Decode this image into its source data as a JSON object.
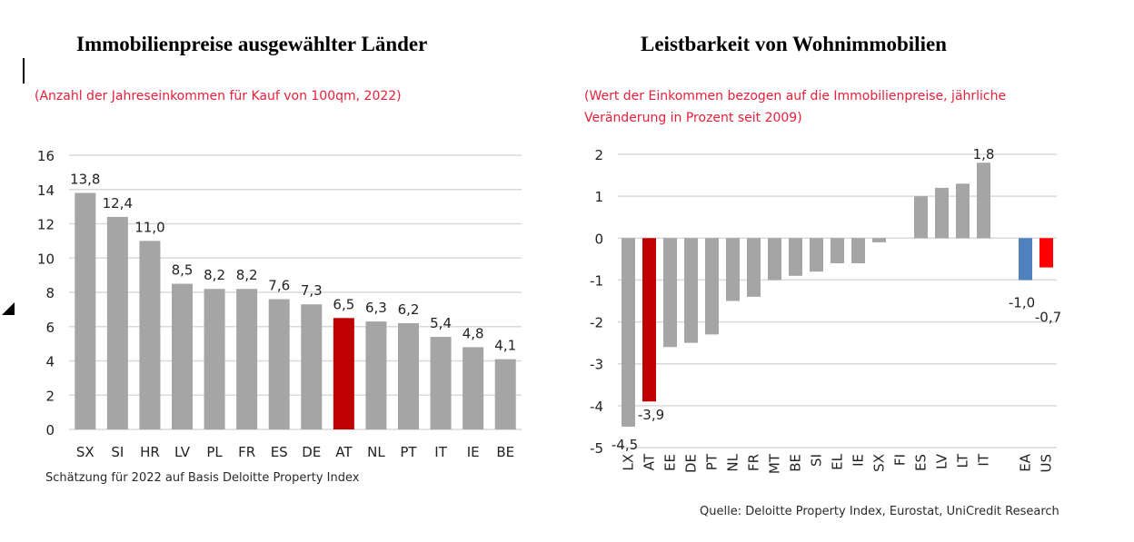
{
  "left": {
    "title": "Immobilienpreise ausgewählter Länder",
    "subtitle": "(Anzahl der Jahreseinkommen für Kauf von 100qm, 2022)",
    "footnote": "Schätzung für 2022 auf Basis Deloitte Property Index"
  },
  "right": {
    "title": "Leistbarkeit von Wohnimmobilien",
    "subtitle_line1": "(Wert der Einkommen bezogen auf die Immobilienpreise, jährliche",
    "subtitle_line2": "Veränderung in Prozent seit 2009)",
    "source": "Quelle: Deloitte Property Index, Eurostat, UniCredit Research"
  },
  "colors": {
    "bar_default": "#a5a5a5",
    "highlight_at": "#c00000",
    "highlight_ea": "#4f81bd",
    "highlight_us": "#ff0000",
    "subtitle": "#e8203a",
    "grid": "#d9d9d9"
  },
  "chart_data": [
    {
      "type": "bar",
      "title": "Immobilienpreise ausgewählter Länder",
      "subtitle": "(Anzahl der Jahreseinkommen für Kauf von 100qm, 2022)",
      "xlabel": "",
      "ylabel": "",
      "ylim": [
        0,
        16
      ],
      "yticks": [
        0,
        2,
        4,
        6,
        8,
        10,
        12,
        14,
        16
      ],
      "grid": true,
      "categories": [
        "SX",
        "SI",
        "HR",
        "LV",
        "PL",
        "FR",
        "ES",
        "DE",
        "AT",
        "NL",
        "PT",
        "IT",
        "IE",
        "BE"
      ],
      "values": [
        13.8,
        12.4,
        11.0,
        8.5,
        8.2,
        8.2,
        7.6,
        7.3,
        6.5,
        6.3,
        6.2,
        5.4,
        4.8,
        4.1
      ],
      "labels": [
        "13,8",
        "12,4",
        "11,0",
        "8,5",
        "8,2",
        "8,2",
        "7,6",
        "7,3",
        "6,5",
        "6,3",
        "6,2",
        "5,4",
        "4,8",
        "4,1"
      ],
      "highlight": {
        "AT": "#c00000"
      },
      "footnote": "Schätzung für 2022 auf Basis Deloitte Property Index"
    },
    {
      "type": "bar",
      "title": "Leistbarkeit von Wohnimmobilien",
      "subtitle": "(Wert der Einkommen bezogen auf die Immobilienpreise, jährliche Veränderung in Prozent seit 2009)",
      "xlabel": "",
      "ylabel": "",
      "ylim": [
        -5,
        2
      ],
      "yticks": [
        -5,
        -4,
        -3,
        -2,
        -1,
        0,
        1,
        2
      ],
      "grid": true,
      "categories": [
        "LX",
        "AT",
        "EE",
        "DE",
        "PT",
        "NL",
        "FR",
        "MT",
        "BE",
        "SI",
        "EL",
        "IE",
        "SX",
        "FI",
        "ES",
        "LV",
        "LT",
        "IT",
        "",
        "EA",
        "US"
      ],
      "values": [
        -4.5,
        -3.9,
        -2.6,
        -2.5,
        -2.3,
        -1.5,
        -1.4,
        -1.0,
        -0.9,
        -0.8,
        -0.6,
        -0.6,
        -0.1,
        0.0,
        1.0,
        1.2,
        1.3,
        1.8,
        null,
        -1.0,
        -0.7
      ],
      "labels": [
        "-4,5",
        "-3,9",
        "",
        "",
        "",
        "",
        "",
        "",
        "",
        "",
        "",
        "",
        "",
        "",
        "",
        "",
        "",
        "1,8",
        "",
        "-1,0",
        "-0,7"
      ],
      "highlight": {
        "AT": "#c00000",
        "EA": "#4f81bd",
        "US": "#ff0000"
      },
      "source": "Quelle: Deloitte Property Index, Eurostat, UniCredit Research"
    }
  ]
}
